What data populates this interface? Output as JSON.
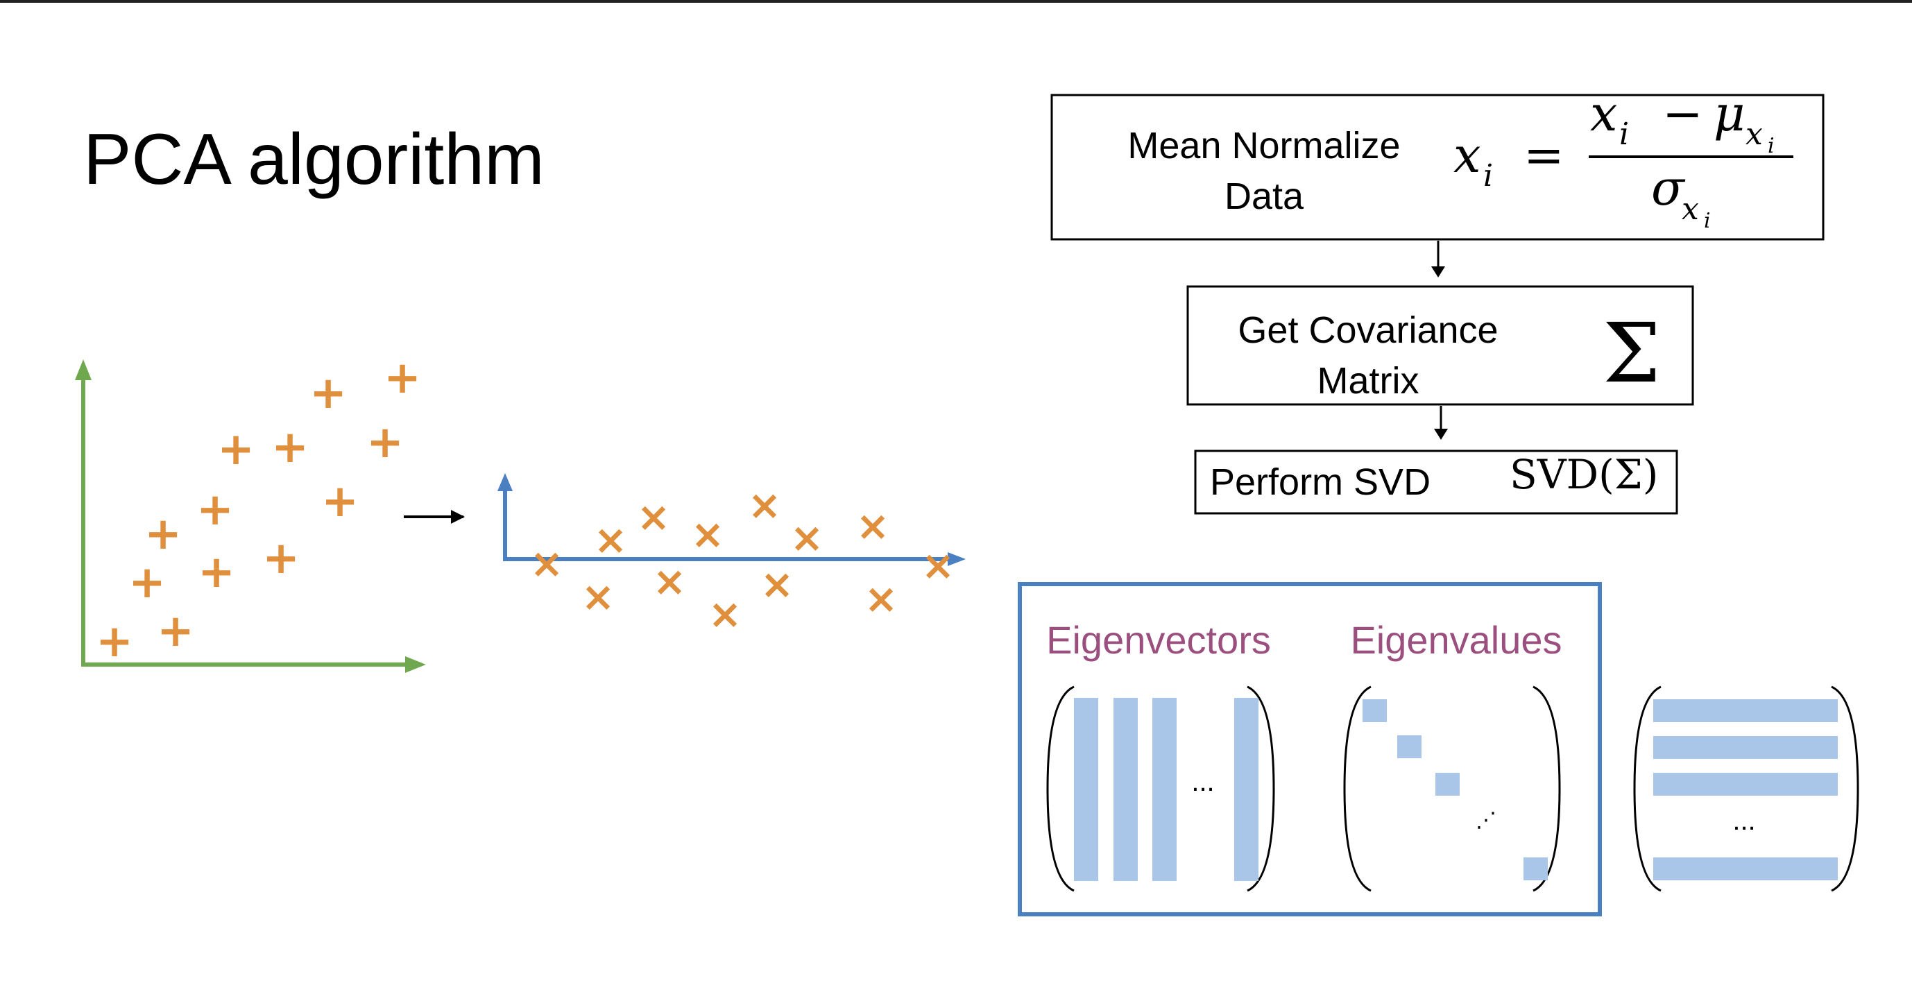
{
  "title": "PCA algorithm",
  "steps": {
    "mean_normalize": {
      "line1": "Mean Normalize",
      "line2": "Data"
    },
    "covariance": {
      "line1": "Get Covariance",
      "line2": "Matrix",
      "symbol": "Σ"
    },
    "svd": {
      "label": "Perform SVD",
      "formula": "SVD(Σ)"
    }
  },
  "formula": {
    "lhs_var": "x",
    "lhs_sub": "i",
    "eq": "=",
    "num_var": "x",
    "num_sub": "i",
    "minus": "−",
    "mu": "μ",
    "mu_sub_var": "x",
    "mu_sub_sub": "i",
    "sigma": "σ",
    "sigma_sub_var": "x",
    "sigma_sub_sub": "i"
  },
  "svd_output": {
    "eigenvectors_label": "Eigenvectors",
    "eigenvalues_label": "Eigenvalues",
    "ellipsis_h": "...",
    "ellipsis_diag": "⋰"
  },
  "plots": {
    "original_marker": "+",
    "projected_marker": "×"
  },
  "colors": {
    "green_axis": "#70a84f",
    "blue_axis": "#4a7fc1",
    "orange_marker": "#e08f3c",
    "purple_label": "#9b4f7e",
    "light_blue_fill": "#a9c5e8",
    "blue_box_border": "#4a7fc1"
  },
  "icons": [
    "arrow-right-icon",
    "arrow-down-icon"
  ]
}
